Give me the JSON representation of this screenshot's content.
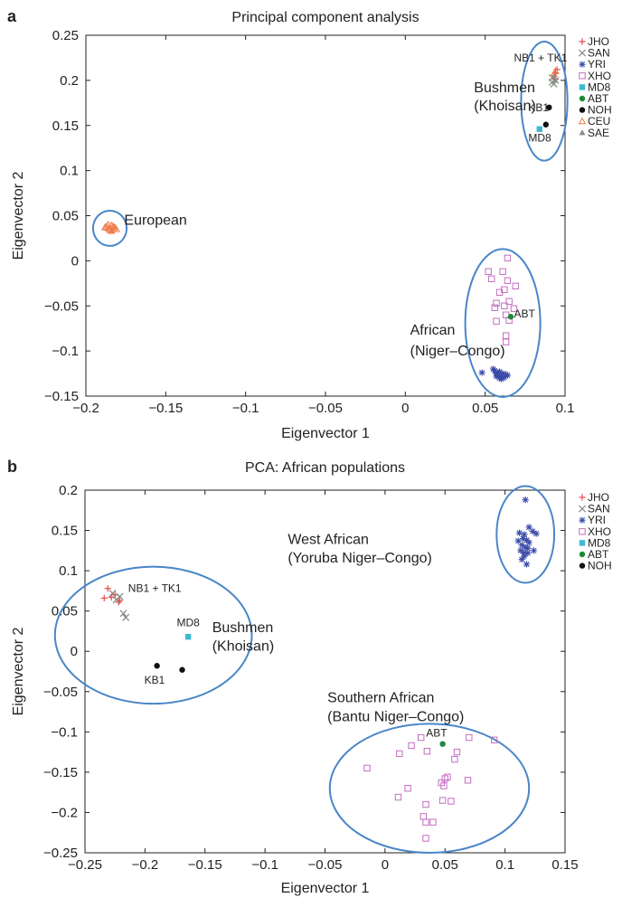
{
  "colors": {
    "JHO": "#e8484a",
    "SAN": "#7f8c7f",
    "YRI": "#3a4aa8",
    "XHO": "#c46cc0",
    "MD8": "#3fb8d2",
    "ABT": "#1f8a3a",
    "NOH": "#111111",
    "CEU": "#f07a4a",
    "SAE": "#8a8a8a",
    "ellipse": "#4a86c8",
    "axis": "#222222"
  },
  "chart_data": [
    {
      "panel": "a",
      "type": "scatter",
      "title": "Principal component analysis",
      "xlabel": "Eigenvector 1",
      "ylabel": "Eigenvector 2",
      "xlim": [
        -0.2,
        0.1
      ],
      "ylim": [
        -0.15,
        0.25
      ],
      "xticks": [
        -0.2,
        -0.15,
        -0.1,
        -0.05,
        0,
        0.05,
        0.1
      ],
      "yticks": [
        -0.15,
        -0.1,
        -0.05,
        0,
        0.05,
        0.1,
        0.15,
        0.2,
        0.25
      ],
      "xtick_labels": [
        "−0.2",
        "−0.15",
        "−0.1",
        "−0.05",
        "0",
        "0.05",
        "0.1"
      ],
      "ytick_labels": [
        "−0.15",
        "−0.1",
        "−0.05",
        "0",
        "0.05",
        "0.1",
        "0.15",
        "0.2",
        "0.25"
      ],
      "legend_position": "right",
      "legend": [
        {
          "name": "JHO",
          "marker": "plus"
        },
        {
          "name": "SAN",
          "marker": "cross"
        },
        {
          "name": "YRI",
          "marker": "star"
        },
        {
          "name": "XHO",
          "marker": "square-open"
        },
        {
          "name": "MD8",
          "marker": "square-filled"
        },
        {
          "name": "ABT",
          "marker": "circle-filled"
        },
        {
          "name": "NOH",
          "marker": "circle-filled"
        },
        {
          "name": "CEU",
          "marker": "triangle-open"
        },
        {
          "name": "SAE",
          "marker": "triangle-filled"
        }
      ],
      "series": [
        {
          "name": "JHO",
          "marker": "plus",
          "points": [
            [
              0.093,
              0.205
            ],
            [
              0.094,
              0.208
            ],
            [
              0.095,
              0.212
            ],
            [
              0.094,
              0.201
            ]
          ]
        },
        {
          "name": "SAN",
          "marker": "cross",
          "points": [
            [
              0.092,
              0.198
            ],
            [
              0.093,
              0.196
            ],
            [
              0.094,
              0.2
            ],
            [
              0.092,
              0.203
            ]
          ]
        },
        {
          "name": "CEU",
          "marker": "triangle-open",
          "points": [
            [
              0.093,
              0.207
            ],
            [
              0.094,
              0.21
            ],
            [
              -0.186,
              0.036
            ],
            [
              -0.184,
              0.039
            ],
            [
              -0.183,
              0.035
            ],
            [
              -0.185,
              0.034
            ],
            [
              -0.187,
              0.038
            ],
            [
              -0.182,
              0.037
            ],
            [
              -0.184,
              0.033
            ],
            [
              -0.186,
              0.04
            ],
            [
              -0.183,
              0.038
            ],
            [
              -0.185,
              0.036
            ],
            [
              -0.181,
              0.035
            ],
            [
              -0.188,
              0.037
            ]
          ]
        },
        {
          "name": "SAE",
          "marker": "triangle-filled",
          "points": [
            [
              0.093,
              0.204
            ]
          ]
        },
        {
          "name": "YRI",
          "marker": "star",
          "points": [
            [
              0.055,
              -0.12
            ],
            [
              0.057,
              -0.125
            ],
            [
              0.058,
              -0.127
            ],
            [
              0.059,
              -0.13
            ],
            [
              0.06,
              -0.128
            ],
            [
              0.061,
              -0.125
            ],
            [
              0.056,
              -0.122
            ],
            [
              0.058,
              -0.124
            ],
            [
              0.062,
              -0.129
            ],
            [
              0.063,
              -0.126
            ],
            [
              0.057,
              -0.128
            ],
            [
              0.06,
              -0.131
            ],
            [
              0.061,
              -0.13
            ],
            [
              0.059,
              -0.123
            ],
            [
              0.064,
              -0.127
            ],
            [
              0.048,
              -0.124
            ]
          ]
        },
        {
          "name": "XHO",
          "marker": "square-open",
          "points": [
            [
              0.064,
              0.003
            ],
            [
              0.061,
              -0.012
            ],
            [
              0.052,
              -0.012
            ],
            [
              0.054,
              -0.02
            ],
            [
              0.064,
              -0.022
            ],
            [
              0.069,
              -0.028
            ],
            [
              0.062,
              -0.032
            ],
            [
              0.059,
              -0.035
            ],
            [
              0.057,
              -0.047
            ],
            [
              0.062,
              -0.05
            ],
            [
              0.065,
              -0.045
            ],
            [
              0.056,
              -0.052
            ],
            [
              0.063,
              -0.06
            ],
            [
              0.065,
              -0.066
            ],
            [
              0.057,
              -0.067
            ],
            [
              0.068,
              -0.053
            ],
            [
              0.063,
              -0.083
            ],
            [
              0.063,
              -0.09
            ]
          ]
        },
        {
          "name": "MD8",
          "marker": "square-filled",
          "points": [
            [
              0.084,
              0.146
            ]
          ]
        },
        {
          "name": "ABT",
          "marker": "circle-filled",
          "points": [
            [
              0.066,
              -0.062
            ]
          ]
        },
        {
          "name": "NOH",
          "marker": "circle-filled",
          "points": [
            [
              0.09,
              0.17
            ],
            [
              0.088,
              0.151
            ]
          ]
        }
      ],
      "ellipses": [
        {
          "cx": -0.185,
          "cy": 0.036,
          "rx": 0.0105,
          "ry": 0.0195
        },
        {
          "cx": 0.087,
          "cy": 0.177,
          "rx": 0.0145,
          "ry": 0.066
        },
        {
          "cx": 0.061,
          "cy": -0.069,
          "rx": 0.0235,
          "ry": 0.082
        }
      ],
      "annotations": [
        {
          "text": "European",
          "x": -0.176,
          "y": 0.04,
          "size": "large",
          "anchor": "start"
        },
        {
          "text": "Bushmen",
          "x": 0.043,
          "y": 0.187,
          "size": "large",
          "anchor": "start"
        },
        {
          "text": "(Khoisan)",
          "x": 0.043,
          "y": 0.167,
          "size": "large",
          "anchor": "start"
        },
        {
          "text": "NB1 + TK1",
          "x": 0.068,
          "y": 0.221,
          "size": "small",
          "anchor": "start"
        },
        {
          "text": "KB1",
          "x": 0.077,
          "y": 0.166,
          "size": "small",
          "anchor": "start"
        },
        {
          "text": "MD8",
          "x": 0.077,
          "y": 0.132,
          "size": "small",
          "anchor": "start"
        },
        {
          "text": "ABT",
          "x": 0.068,
          "y": -0.063,
          "size": "small",
          "anchor": "start"
        },
        {
          "text": "African",
          "x": 0.003,
          "y": -0.082,
          "size": "large",
          "anchor": "start"
        },
        {
          "text": "(Niger–Congo)",
          "x": 0.003,
          "y": -0.105,
          "size": "large",
          "anchor": "start"
        }
      ]
    },
    {
      "panel": "b",
      "type": "scatter",
      "title": "PCA: African populations",
      "xlabel": "Eigenvector 1",
      "ylabel": "Eigenvector 2",
      "xlim": [
        -0.25,
        0.15
      ],
      "ylim": [
        -0.25,
        0.2
      ],
      "xticks": [
        -0.25,
        -0.2,
        -0.15,
        -0.1,
        -0.05,
        0,
        0.05,
        0.1,
        0.15
      ],
      "yticks": [
        -0.25,
        -0.2,
        -0.15,
        -0.1,
        -0.05,
        0,
        0.05,
        0.1,
        0.15,
        0.2
      ],
      "xtick_labels": [
        "−0.25",
        "−0.2",
        "−0.15",
        "−0.1",
        "−0.05",
        "0",
        "0.05",
        "0.1",
        "0.15"
      ],
      "ytick_labels": [
        "−0.25",
        "−0.2",
        "−0.15",
        "−0.1",
        "−0.05",
        "0",
        "0.05",
        "0.1",
        "0.15",
        "0.2"
      ],
      "legend_position": "right",
      "legend": [
        {
          "name": "JHO",
          "marker": "plus"
        },
        {
          "name": "SAN",
          "marker": "cross"
        },
        {
          "name": "YRI",
          "marker": "star"
        },
        {
          "name": "XHO",
          "marker": "square-open"
        },
        {
          "name": "MD8",
          "marker": "square-filled"
        },
        {
          "name": "ABT",
          "marker": "circle-filled"
        },
        {
          "name": "NOH",
          "marker": "circle-filled"
        }
      ],
      "series": [
        {
          "name": "JHO",
          "marker": "plus",
          "points": [
            [
              -0.234,
              0.066
            ],
            [
              -0.231,
              0.078
            ],
            [
              -0.228,
              0.067
            ],
            [
              -0.225,
              0.07
            ],
            [
              -0.222,
              0.061
            ],
            [
              -0.221,
              0.063
            ]
          ]
        },
        {
          "name": "SAN",
          "marker": "cross",
          "points": [
            [
              -0.227,
              0.072
            ],
            [
              -0.224,
              0.064
            ],
            [
              -0.218,
              0.047
            ],
            [
              -0.216,
              0.042
            ],
            [
              -0.221,
              0.068
            ]
          ]
        },
        {
          "name": "YRI",
          "marker": "star",
          "points": [
            [
              0.117,
              0.188
            ],
            [
              0.12,
              0.154
            ],
            [
              0.123,
              0.149
            ],
            [
              0.126,
              0.146
            ],
            [
              0.112,
              0.147
            ],
            [
              0.115,
              0.14
            ],
            [
              0.118,
              0.138
            ],
            [
              0.114,
              0.132
            ],
            [
              0.117,
              0.129
            ],
            [
              0.113,
              0.125
            ],
            [
              0.119,
              0.122
            ],
            [
              0.116,
              0.118
            ],
            [
              0.114,
              0.114
            ],
            [
              0.118,
              0.108
            ],
            [
              0.12,
              0.135
            ],
            [
              0.116,
              0.145
            ],
            [
              0.119,
              0.128
            ],
            [
              0.124,
              0.125
            ],
            [
              0.111,
              0.137
            ],
            [
              0.116,
              0.122
            ]
          ]
        },
        {
          "name": "XHO",
          "marker": "square-open",
          "points": [
            [
              0.07,
              -0.107
            ],
            [
              0.03,
              -0.107
            ],
            [
              0.091,
              -0.11
            ],
            [
              0.022,
              -0.117
            ],
            [
              0.012,
              -0.127
            ],
            [
              0.035,
              -0.124
            ],
            [
              0.06,
              -0.125
            ],
            [
              -0.015,
              -0.145
            ],
            [
              0.058,
              -0.134
            ],
            [
              0.052,
              -0.156
            ],
            [
              0.05,
              -0.158
            ],
            [
              0.069,
              -0.16
            ],
            [
              0.047,
              -0.163
            ],
            [
              0.049,
              -0.167
            ],
            [
              0.019,
              -0.17
            ],
            [
              0.011,
              -0.181
            ],
            [
              0.048,
              -0.185
            ],
            [
              0.055,
              -0.186
            ],
            [
              0.034,
              -0.19
            ],
            [
              0.032,
              -0.205
            ],
            [
              0.034,
              -0.212
            ],
            [
              0.04,
              -0.212
            ],
            [
              0.034,
              -0.232
            ]
          ]
        },
        {
          "name": "MD8",
          "marker": "square-filled",
          "points": [
            [
              -0.164,
              0.018
            ]
          ]
        },
        {
          "name": "ABT",
          "marker": "circle-filled",
          "points": [
            [
              0.048,
              -0.115
            ]
          ]
        },
        {
          "name": "NOH",
          "marker": "circle-filled",
          "points": [
            [
              -0.19,
              -0.018
            ],
            [
              -0.169,
              -0.023
            ]
          ]
        }
      ],
      "ellipses": [
        {
          "cx": -0.193,
          "cy": 0.02,
          "rx": 0.082,
          "ry": 0.085
        },
        {
          "cx": 0.117,
          "cy": 0.145,
          "rx": 0.024,
          "ry": 0.06
        },
        {
          "cx": 0.037,
          "cy": -0.17,
          "rx": 0.083,
          "ry": 0.08
        }
      ],
      "annotations": [
        {
          "text": "NB1 + TK1",
          "x": -0.214,
          "y": 0.074,
          "size": "small",
          "anchor": "start"
        },
        {
          "text": "MD8",
          "x": -0.164,
          "y": 0.031,
          "size": "small",
          "anchor": "middle"
        },
        {
          "text": "KB1",
          "x": -0.192,
          "y": -0.04,
          "size": "small",
          "anchor": "middle"
        },
        {
          "text": "Bushmen",
          "x": -0.144,
          "y": 0.024,
          "size": "large",
          "anchor": "start"
        },
        {
          "text": "(Khoisan)",
          "x": -0.144,
          "y": 0.001,
          "size": "large",
          "anchor": "start"
        },
        {
          "text": "West African",
          "x": -0.081,
          "y": 0.133,
          "size": "large",
          "anchor": "start"
        },
        {
          "text": "(Yoruba Niger–Congo)",
          "x": -0.081,
          "y": 0.11,
          "size": "large",
          "anchor": "start"
        },
        {
          "text": "ABT",
          "x": 0.043,
          "y": -0.106,
          "size": "small",
          "anchor": "middle"
        },
        {
          "text": "Southern African",
          "x": -0.048,
          "y": -0.063,
          "size": "large",
          "anchor": "start"
        },
        {
          "text": "(Bantu Niger–Congo)",
          "x": -0.048,
          "y": -0.087,
          "size": "large",
          "anchor": "start"
        }
      ]
    }
  ]
}
